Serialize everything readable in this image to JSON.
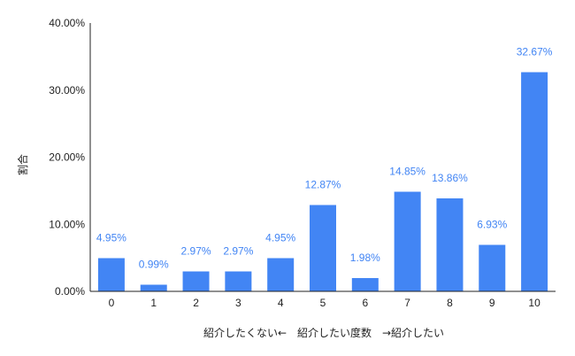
{
  "chart_data": {
    "type": "bar",
    "categories": [
      "0",
      "1",
      "2",
      "3",
      "4",
      "5",
      "6",
      "7",
      "8",
      "9",
      "10"
    ],
    "values": [
      4.95,
      0.99,
      2.97,
      2.97,
      4.95,
      12.87,
      1.98,
      14.85,
      13.86,
      6.93,
      32.67
    ],
    "value_labels": [
      "4.95%",
      "0.99%",
      "2.97%",
      "2.97%",
      "4.95%",
      "12.87%",
      "1.98%",
      "14.85%",
      "13.86%",
      "6.93%",
      "32.67%"
    ],
    "y_ticks": [
      0,
      10,
      20,
      30,
      40
    ],
    "y_tick_labels": [
      "0.00%",
      "10.00%",
      "20.00%",
      "30.00%",
      "40.00%"
    ],
    "ylim": [
      0,
      40
    ],
    "title": "",
    "xlabel": "紹介したくない←　紹介したい度数　→紹介したい",
    "ylabel": "割合",
    "grid": false,
    "legend": "none",
    "bar_color": "#4285f4",
    "label_color": "#4285f4",
    "axis_color": "#222222"
  }
}
